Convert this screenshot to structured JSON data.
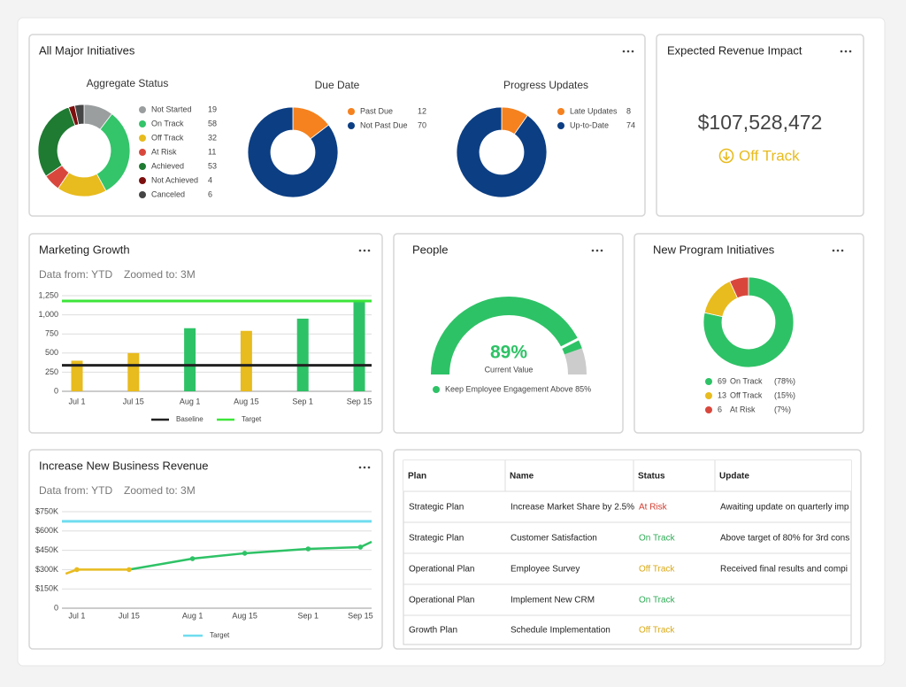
{
  "initiatives": {
    "title": "All Major Initiatives"
  },
  "revenue_impact": {
    "title": "Expected Revenue Impact",
    "value": "$107,528,472",
    "status": "Off Track"
  },
  "chart_data": [
    {
      "type": "donut",
      "title": "Aggregate Status",
      "categories": [
        "Not Started",
        "On Track",
        "Off Track",
        "At Risk",
        "Achieved",
        "Not Achieved",
        "Canceled"
      ],
      "values": [
        19,
        58,
        32,
        11,
        53,
        4,
        6
      ],
      "colors": [
        "#9a9e9f",
        "#34c46a",
        "#e8bb1e",
        "#d9473c",
        "#1f7a32",
        "#7d0f0f",
        "#454545"
      ]
    },
    {
      "type": "donut",
      "title": "Due Date",
      "categories": [
        "Past Due",
        "Not Past Due"
      ],
      "values": [
        12,
        70
      ],
      "colors": [
        "#f5821f",
        "#0c3e83"
      ]
    },
    {
      "type": "donut",
      "title": "Progress Updates",
      "categories": [
        "Late Updates",
        "Up-to-Date"
      ],
      "values": [
        8,
        74
      ],
      "colors": [
        "#f5821f",
        "#0c3e83"
      ]
    },
    {
      "type": "bar",
      "title": "Marketing Growth",
      "subtitle": "Data from: YTD",
      "note": "Zoomed to: 3M",
      "categories": [
        "Jul 1",
        "Jul 15",
        "Aug 1",
        "Aug 15",
        "Sep 1",
        "Sep 15"
      ],
      "values": [
        400,
        500,
        825,
        790,
        950,
        1170
      ],
      "colors": [
        "#e8bb1e",
        "#e8bb1e",
        "#2ec266",
        "#e8bb1e",
        "#2ec266",
        "#2ec266"
      ],
      "ylim": [
        0,
        1250
      ],
      "yticks": [
        0,
        250,
        500,
        750,
        {
          "value": 1000,
          "label": "1,000"
        },
        {
          "value": 1250,
          "label": "1,250"
        }
      ],
      "grid": true,
      "reference_lines": [
        {
          "name": "Baseline",
          "color": "#222222",
          "value": 340
        },
        {
          "name": "Target",
          "color": "#3de53a",
          "value": 1180
        }
      ]
    },
    {
      "type": "gauge",
      "title": "People",
      "value": 89,
      "value_label": "89%",
      "caption": "Current Value",
      "target": 85,
      "legend": "Keep Employee Engagement Above 85%",
      "range": [
        0,
        100
      ],
      "color": "#2ec266",
      "rest_color": "#cccccc"
    },
    {
      "type": "donut",
      "title": "New Program Initiatives",
      "categories": [
        "On Track",
        "Off Track",
        "At Risk"
      ],
      "values": [
        69,
        13,
        6
      ],
      "share_labels": [
        "(78%)",
        "(15%)",
        "(7%)"
      ],
      "colors": [
        "#2ec266",
        "#e8bb1e",
        "#d9473c"
      ]
    },
    {
      "type": "line",
      "title": "Increase New Business Revenue",
      "subtitle": "Data from: YTD",
      "note": "Zoomed to: 3M",
      "x": [
        -3,
        0,
        14,
        31,
        45,
        62,
        76,
        79
      ],
      "values": [
        268000,
        300000,
        300000,
        385000,
        427000,
        461000,
        475000,
        516000
      ],
      "colors": [
        "#e8bb1e",
        "#e8bb1e",
        "#e8bb1e",
        "#2ec266",
        "#2ec266",
        "#2ec266",
        "#2ec266",
        "#2ec266"
      ],
      "xlim": [
        -4,
        79
      ],
      "xticks": [
        {
          "value": 0,
          "label": "Jul 1"
        },
        {
          "value": 14,
          "label": "Jul 15"
        },
        {
          "value": 31,
          "label": "Aug 1"
        },
        {
          "value": 45,
          "label": "Aug 15"
        },
        {
          "value": 62,
          "label": "Sep 1"
        },
        {
          "value": 76,
          "label": "Sep 15"
        }
      ],
      "ylim": [
        0,
        750000
      ],
      "yticks": [
        0,
        {
          "value": 150000,
          "label": "$150K"
        },
        {
          "value": 300000,
          "label": "$300K"
        },
        {
          "value": 450000,
          "label": "$450K"
        },
        {
          "value": 600000,
          "label": "$600K"
        },
        {
          "value": 750000,
          "label": "$750K"
        }
      ],
      "grid": true,
      "reference_lines": [
        {
          "name": "Target",
          "color": "#6fdcef",
          "value": 675000
        }
      ]
    }
  ],
  "table": {
    "columns": [
      "Plan",
      "Name",
      "Status",
      "Update"
    ],
    "rows": [
      [
        "Strategic Plan",
        "Increase Market Share by 2.5%",
        {
          "text": "At Risk",
          "color": "#d23c2f"
        },
        "Awaiting update on quarterly imp"
      ],
      [
        "Strategic Plan",
        "Customer Satisfaction",
        {
          "text": "On Track",
          "color": "#2eaa55"
        },
        "Above target of 80% for 3rd cons"
      ],
      [
        "Operational Plan",
        "Employee Survey",
        {
          "text": "Off Track",
          "color": "#d9a916"
        },
        "Received final results and compi"
      ],
      [
        "Operational Plan",
        "Implement New CRM",
        {
          "text": "On Track",
          "color": "#2eaa55"
        },
        null
      ],
      [
        "Growth Plan",
        "Schedule Implementation",
        {
          "text": "Off Track",
          "color": "#d9a916"
        },
        null
      ]
    ]
  }
}
